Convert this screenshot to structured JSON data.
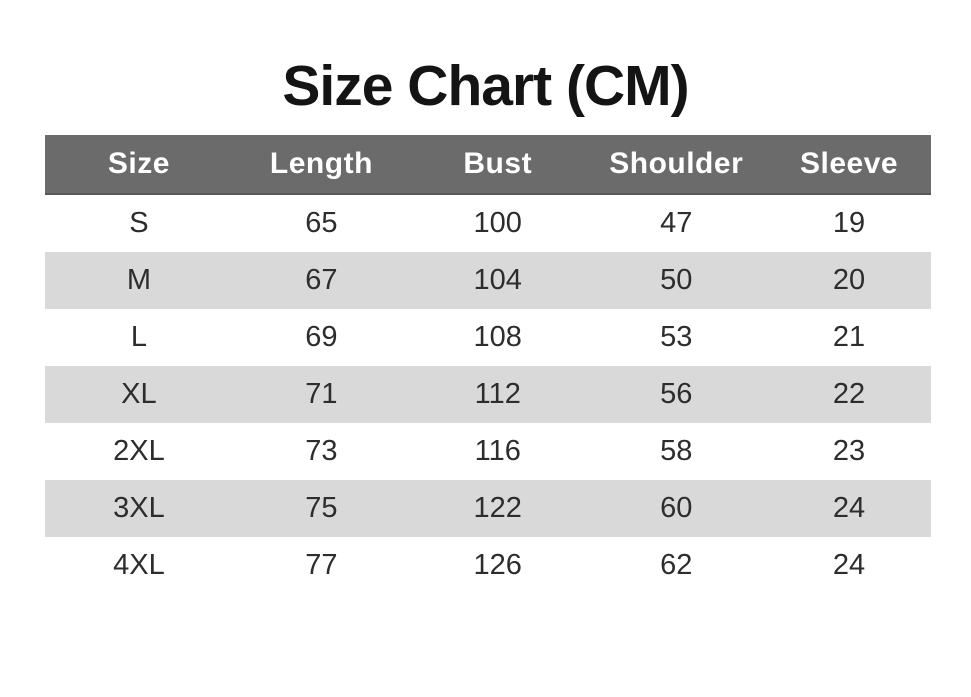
{
  "title": "Size Chart (CM)",
  "colors": {
    "header_bg": "#6b6b6b",
    "header_text": "#ffffff",
    "row_bg": "#ffffff",
    "row_alt_bg": "#d9d9d9",
    "cell_text": "#2d2d2d",
    "title_text": "#141414"
  },
  "chart_data": {
    "type": "table",
    "title": "Size Chart (CM)",
    "columns": [
      "Size",
      "Length",
      "Bust",
      "Shoulder",
      "Sleeve"
    ],
    "column_width_percents": [
      21.2,
      20.0,
      19.8,
      20.5,
      18.5
    ],
    "rows": [
      [
        "S",
        65,
        100,
        47,
        19
      ],
      [
        "M",
        67,
        104,
        50,
        20
      ],
      [
        "L",
        69,
        108,
        53,
        21
      ],
      [
        "XL",
        71,
        112,
        56,
        22
      ],
      [
        "2XL",
        73,
        116,
        58,
        23
      ],
      [
        "3XL",
        75,
        122,
        60,
        24
      ],
      [
        "4XL",
        77,
        126,
        62,
        24
      ]
    ]
  }
}
